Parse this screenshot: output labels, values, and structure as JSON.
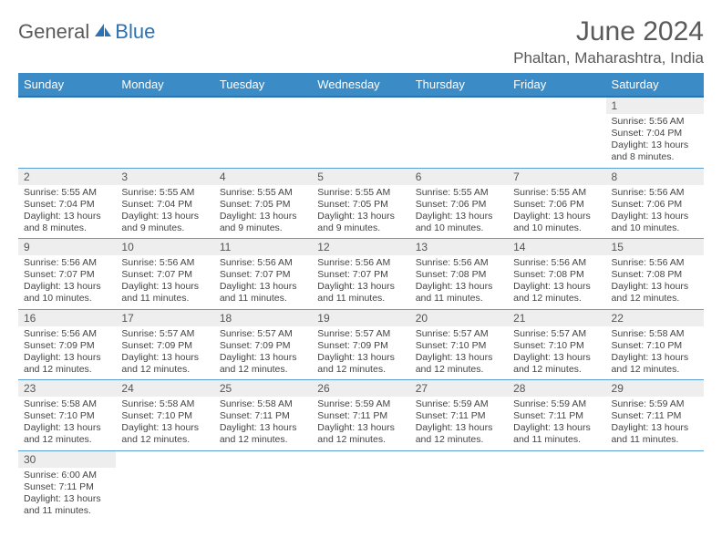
{
  "brand": {
    "part1": "General",
    "part2": "Blue"
  },
  "title": "June 2024",
  "location": "Phaltan, Maharashtra, India",
  "colors": {
    "header_bg": "#3b8bc7",
    "header_border": "#2a72b5",
    "row_divider": "#5a9fd4",
    "daynum_bg": "#eeeeee",
    "text": "#444444",
    "title_text": "#5a5a5a",
    "brand_blue": "#2a72b5"
  },
  "weekdays": [
    "Sunday",
    "Monday",
    "Tuesday",
    "Wednesday",
    "Thursday",
    "Friday",
    "Saturday"
  ],
  "weeks": [
    {
      "days": [
        null,
        null,
        null,
        null,
        null,
        null,
        {
          "n": "1",
          "sr": "5:56 AM",
          "ss": "7:04 PM",
          "dl": "13 hours and 8 minutes."
        }
      ]
    },
    {
      "days": [
        {
          "n": "2",
          "sr": "5:55 AM",
          "ss": "7:04 PM",
          "dl": "13 hours and 8 minutes."
        },
        {
          "n": "3",
          "sr": "5:55 AM",
          "ss": "7:04 PM",
          "dl": "13 hours and 9 minutes."
        },
        {
          "n": "4",
          "sr": "5:55 AM",
          "ss": "7:05 PM",
          "dl": "13 hours and 9 minutes."
        },
        {
          "n": "5",
          "sr": "5:55 AM",
          "ss": "7:05 PM",
          "dl": "13 hours and 9 minutes."
        },
        {
          "n": "6",
          "sr": "5:55 AM",
          "ss": "7:06 PM",
          "dl": "13 hours and 10 minutes."
        },
        {
          "n": "7",
          "sr": "5:55 AM",
          "ss": "7:06 PM",
          "dl": "13 hours and 10 minutes."
        },
        {
          "n": "8",
          "sr": "5:56 AM",
          "ss": "7:06 PM",
          "dl": "13 hours and 10 minutes."
        }
      ]
    },
    {
      "days": [
        {
          "n": "9",
          "sr": "5:56 AM",
          "ss": "7:07 PM",
          "dl": "13 hours and 10 minutes."
        },
        {
          "n": "10",
          "sr": "5:56 AM",
          "ss": "7:07 PM",
          "dl": "13 hours and 11 minutes."
        },
        {
          "n": "11",
          "sr": "5:56 AM",
          "ss": "7:07 PM",
          "dl": "13 hours and 11 minutes."
        },
        {
          "n": "12",
          "sr": "5:56 AM",
          "ss": "7:07 PM",
          "dl": "13 hours and 11 minutes."
        },
        {
          "n": "13",
          "sr": "5:56 AM",
          "ss": "7:08 PM",
          "dl": "13 hours and 11 minutes."
        },
        {
          "n": "14",
          "sr": "5:56 AM",
          "ss": "7:08 PM",
          "dl": "13 hours and 12 minutes."
        },
        {
          "n": "15",
          "sr": "5:56 AM",
          "ss": "7:08 PM",
          "dl": "13 hours and 12 minutes."
        }
      ]
    },
    {
      "days": [
        {
          "n": "16",
          "sr": "5:56 AM",
          "ss": "7:09 PM",
          "dl": "13 hours and 12 minutes."
        },
        {
          "n": "17",
          "sr": "5:57 AM",
          "ss": "7:09 PM",
          "dl": "13 hours and 12 minutes."
        },
        {
          "n": "18",
          "sr": "5:57 AM",
          "ss": "7:09 PM",
          "dl": "13 hours and 12 minutes."
        },
        {
          "n": "19",
          "sr": "5:57 AM",
          "ss": "7:09 PM",
          "dl": "13 hours and 12 minutes."
        },
        {
          "n": "20",
          "sr": "5:57 AM",
          "ss": "7:10 PM",
          "dl": "13 hours and 12 minutes."
        },
        {
          "n": "21",
          "sr": "5:57 AM",
          "ss": "7:10 PM",
          "dl": "13 hours and 12 minutes."
        },
        {
          "n": "22",
          "sr": "5:58 AM",
          "ss": "7:10 PM",
          "dl": "13 hours and 12 minutes."
        }
      ]
    },
    {
      "days": [
        {
          "n": "23",
          "sr": "5:58 AM",
          "ss": "7:10 PM",
          "dl": "13 hours and 12 minutes."
        },
        {
          "n": "24",
          "sr": "5:58 AM",
          "ss": "7:10 PM",
          "dl": "13 hours and 12 minutes."
        },
        {
          "n": "25",
          "sr": "5:58 AM",
          "ss": "7:11 PM",
          "dl": "13 hours and 12 minutes."
        },
        {
          "n": "26",
          "sr": "5:59 AM",
          "ss": "7:11 PM",
          "dl": "13 hours and 12 minutes."
        },
        {
          "n": "27",
          "sr": "5:59 AM",
          "ss": "7:11 PM",
          "dl": "13 hours and 12 minutes."
        },
        {
          "n": "28",
          "sr": "5:59 AM",
          "ss": "7:11 PM",
          "dl": "13 hours and 11 minutes."
        },
        {
          "n": "29",
          "sr": "5:59 AM",
          "ss": "7:11 PM",
          "dl": "13 hours and 11 minutes."
        }
      ]
    },
    {
      "days": [
        {
          "n": "30",
          "sr": "6:00 AM",
          "ss": "7:11 PM",
          "dl": "13 hours and 11 minutes."
        },
        null,
        null,
        null,
        null,
        null,
        null
      ]
    }
  ],
  "labels": {
    "sunrise": "Sunrise: ",
    "sunset": "Sunset: ",
    "daylight": "Daylight: "
  }
}
